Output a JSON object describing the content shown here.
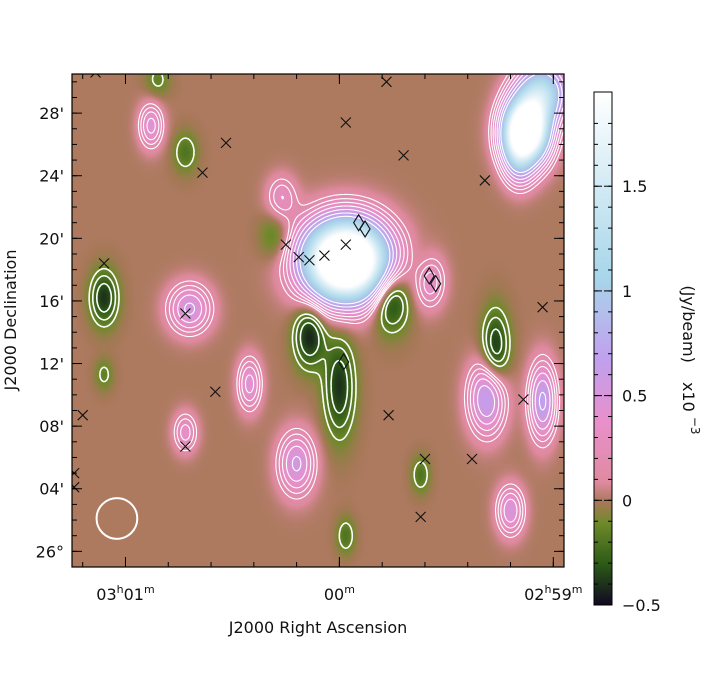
{
  "chart_data": {
    "type": "heatmap",
    "title": "",
    "xlabel": "J2000 Right Ascension",
    "ylabel": "J2000 Declination",
    "colorbar": {
      "label": "(Jy/beam)  x10^-3",
      "label_main": "(Jy/beam)",
      "label_scale_base": "x10",
      "label_scale_exp": "−3",
      "range": [
        -0.5,
        1.95
      ],
      "ticks": [
        {
          "value": -0.5,
          "label": "−0.5"
        },
        {
          "value": 0,
          "label": "0"
        },
        {
          "value": 0.5,
          "label": "0.5"
        },
        {
          "value": 1,
          "label": "1"
        },
        {
          "value": 1.5,
          "label": "1.5"
        }
      ],
      "colormap": [
        "#100820",
        "#2c5a16",
        "#6f8a2a",
        "#a77858",
        "#e08aa0",
        "#e890cc",
        "#c0a0ee",
        "#a8d6ea",
        "#ffffff"
      ]
    },
    "xaxis": {
      "units": "RA minutes after 02h59m",
      "range": [
        2.25,
        -0.05
      ],
      "ticks": [
        {
          "value": 2,
          "h": "03",
          "m": "01"
        },
        {
          "value": 1,
          "h": "",
          "m": "00"
        },
        {
          "value": 0,
          "h": "02",
          "m": "59"
        }
      ]
    },
    "yaxis": {
      "units": "arcmin after 26°",
      "range": [
        -1,
        30.5
      ],
      "ticks": [
        {
          "value": 0,
          "label": "26°"
        },
        {
          "value": 4,
          "label": "04'"
        },
        {
          "value": 8,
          "label": "08'"
        },
        {
          "value": 12,
          "label": "12'"
        },
        {
          "value": 16,
          "label": "16'"
        },
        {
          "value": 20,
          "label": "20'"
        },
        {
          "value": 24,
          "label": "24'"
        },
        {
          "value": 28,
          "label": "28'"
        }
      ]
    },
    "sources": [
      {
        "x": 0.97,
        "y": 18.6,
        "peak": 3.2,
        "sx": 0.13,
        "sy": 1.7,
        "rot": 0
      },
      {
        "x": 0.13,
        "y": 26.8,
        "peak": 3.0,
        "sx": 0.07,
        "sy": 1.4,
        "rot": 0
      },
      {
        "x": 0.05,
        "y": 29.3,
        "peak": 1.2,
        "sx": 0.08,
        "sy": 1.3,
        "rot": 0
      },
      {
        "x": 0.16,
        "y": 25.0,
        "peak": 0.5,
        "sx": 0.05,
        "sy": 1.2,
        "rot": 0
      },
      {
        "x": 1.7,
        "y": 15.5,
        "peak": 0.55,
        "sx": 0.07,
        "sy": 1.1,
        "rot": 0
      },
      {
        "x": 1.88,
        "y": 27.2,
        "peak": 0.45,
        "sx": 0.04,
        "sy": 1.0,
        "rot": 0
      },
      {
        "x": 1.42,
        "y": 10.7,
        "peak": 0.45,
        "sx": 0.04,
        "sy": 1.2,
        "rot": 0
      },
      {
        "x": 0.05,
        "y": 9.6,
        "peak": 0.7,
        "sx": 0.045,
        "sy": 1.7,
        "rot": 0
      },
      {
        "x": 0.31,
        "y": 9.8,
        "peak": 0.7,
        "sx": 0.06,
        "sy": 1.6,
        "rot": 0
      },
      {
        "x": -0.27,
        "y": 10.0,
        "peak": 0.6,
        "sx": 0.06,
        "sy": 1.5,
        "rot": 0
      },
      {
        "x": 1.2,
        "y": 5.6,
        "peak": 0.55,
        "sx": 0.06,
        "sy": 1.4,
        "rot": 0
      },
      {
        "x": 1.72,
        "y": 7.6,
        "peak": 0.35,
        "sx": 0.04,
        "sy": 0.9,
        "rot": 0
      },
      {
        "x": 0.2,
        "y": 2.6,
        "peak": 0.5,
        "sx": 0.045,
        "sy": 1.1,
        "rot": 0
      },
      {
        "x": 0.58,
        "y": 17.4,
        "peak": 0.5,
        "sx": 0.05,
        "sy": 1.2,
        "rot": 0
      },
      {
        "x": 1.27,
        "y": 22.6,
        "peak": 0.3,
        "sx": 0.05,
        "sy": 1.0,
        "rot": 0
      },
      {
        "x": 1.0,
        "y": 10.5,
        "peak": -0.4,
        "sx": 0.05,
        "sy": 2.2,
        "rot": 0
      },
      {
        "x": 1.14,
        "y": 13.8,
        "peak": -0.45,
        "sx": 0.05,
        "sy": 1.4,
        "rot": 0
      },
      {
        "x": 0.76,
        "y": 16.2,
        "peak": -0.5,
        "sx": 0.06,
        "sy": 1.4,
        "rot": 0
      },
      {
        "x": 0.6,
        "y": 18.0,
        "peak": -0.22,
        "sx": 0.05,
        "sy": 1.1,
        "rot": 0
      },
      {
        "x": 0.27,
        "y": 12.9,
        "peak": -0.42,
        "sx": 0.045,
        "sy": 1.7,
        "rot": 0
      },
      {
        "x": 2.1,
        "y": 16.2,
        "peak": -0.4,
        "sx": 0.045,
        "sy": 1.2,
        "rot": 0
      },
      {
        "x": 0.12,
        "y": 25.5,
        "peak": -0.25,
        "sx": 0.05,
        "sy": 1.0,
        "rot": 0
      },
      {
        "x": 1.3,
        "y": 20.1,
        "peak": -0.2,
        "sx": 0.05,
        "sy": 1.1,
        "rot": 0
      },
      {
        "x": 1.72,
        "y": 25.5,
        "peak": -0.2,
        "sx": 0.04,
        "sy": 0.9,
        "rot": 0
      },
      {
        "x": 0.62,
        "y": 4.9,
        "peak": -0.2,
        "sx": 0.03,
        "sy": 0.8,
        "rot": 0
      },
      {
        "x": 0.97,
        "y": 1.0,
        "peak": -0.2,
        "sx": 0.03,
        "sy": 0.8,
        "rot": 0
      },
      {
        "x": 2.1,
        "y": 11.3,
        "peak": -0.15,
        "sx": 0.03,
        "sy": 0.7,
        "rot": 0
      },
      {
        "x": 1.85,
        "y": 30.1,
        "peak": -0.15,
        "sx": 0.04,
        "sy": 0.8,
        "rot": 0
      }
    ],
    "contour_levels": {
      "positive": [
        0.15,
        0.22,
        0.3,
        0.4,
        0.52,
        0.66,
        0.82
      ],
      "negative": [
        -0.12,
        -0.2,
        -0.3
      ]
    },
    "cross_markers": [
      [
        2.14,
        30.6
      ],
      [
        1.02,
        30.8
      ],
      [
        0.78,
        30.0
      ],
      [
        0.97,
        27.4
      ],
      [
        0.7,
        25.3
      ],
      [
        1.53,
        26.1
      ],
      [
        1.64,
        24.2
      ],
      [
        0.32,
        23.7
      ],
      [
        0.97,
        19.6
      ],
      [
        1.07,
        18.9
      ],
      [
        1.19,
        18.8
      ],
      [
        1.14,
        18.6
      ],
      [
        1.25,
        19.6
      ],
      [
        2.1,
        18.4
      ],
      [
        1.72,
        15.2
      ],
      [
        1.58,
        10.2
      ],
      [
        0.05,
        15.6
      ],
      [
        0.14,
        9.7
      ],
      [
        0.77,
        8.7
      ],
      [
        2.2,
        8.7
      ],
      [
        1.72,
        6.7
      ],
      [
        0.6,
        5.9
      ],
      [
        0.38,
        5.9
      ],
      [
        2.24,
        5.0
      ],
      [
        2.24,
        4.1
      ],
      [
        0.62,
        2.2
      ]
    ],
    "diamond_markers": [
      [
        0.91,
        21.0
      ],
      [
        0.88,
        20.6
      ],
      [
        0.58,
        17.6
      ],
      [
        0.55,
        17.1
      ],
      [
        0.98,
        12.1
      ]
    ],
    "beam": {
      "x": 2.04,
      "y": 2.1,
      "radius": 1.3
    }
  }
}
